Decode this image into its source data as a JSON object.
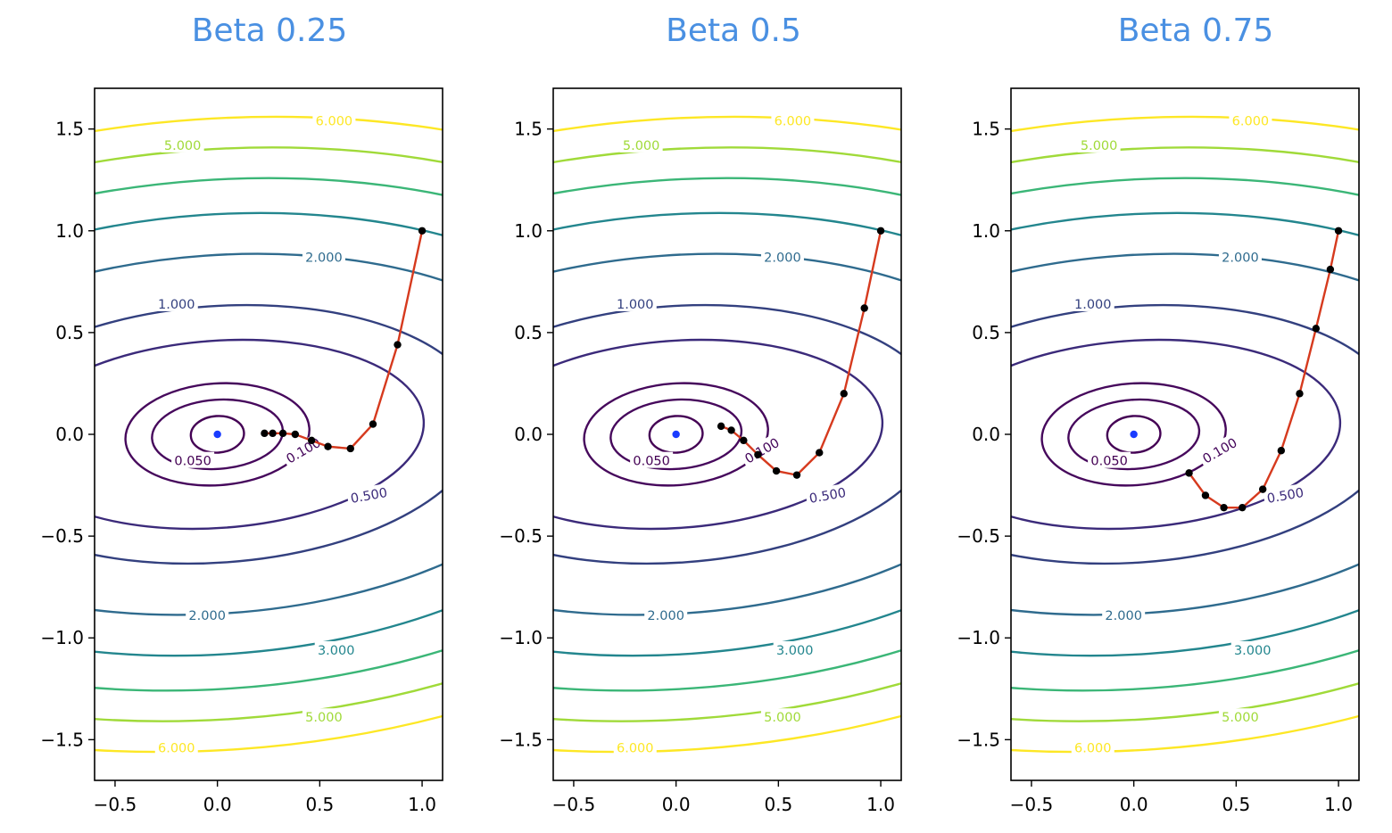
{
  "chart_data": [
    {
      "type": "line",
      "title": "Beta 0.25",
      "xlim": [
        -0.6,
        1.1
      ],
      "ylim": [
        -1.7,
        1.7
      ],
      "xticks": [
        -0.5,
        0.0,
        0.5,
        1.0
      ],
      "yticks": [
        -1.5,
        -1.0,
        -0.5,
        0.0,
        0.5,
        1.0,
        1.5
      ],
      "xtick_labels": [
        "−0.5",
        "0.0",
        "0.5",
        "1.0"
      ],
      "ytick_labels": [
        "−1.5",
        "−1.0",
        "−0.5",
        "0.0",
        "0.5",
        "1.0",
        "1.5"
      ],
      "contour_levels": [
        0.05,
        0.1,
        0.5,
        1.0,
        2.0,
        3.0,
        4.0,
        5.0,
        6.0
      ],
      "contour_labels": [
        "0.050",
        "0.100",
        "0.500",
        "1.000",
        "2.000",
        "3.000",
        "5.000",
        "6.000"
      ],
      "minimum": {
        "x": 0.0,
        "y": 0.0
      },
      "path": {
        "x": [
          1.0,
          0.88,
          0.76,
          0.65,
          0.54,
          0.46,
          0.38,
          0.32,
          0.27,
          0.23
        ],
        "y": [
          1.0,
          0.44,
          0.05,
          -0.07,
          -0.06,
          -0.03,
          0.0,
          0.005,
          0.005,
          0.005
        ]
      }
    },
    {
      "type": "line",
      "title": "Beta 0.5",
      "xlim": [
        -0.6,
        1.1
      ],
      "ylim": [
        -1.7,
        1.7
      ],
      "xticks": [
        -0.5,
        0.0,
        0.5,
        1.0
      ],
      "yticks": [
        -1.5,
        -1.0,
        -0.5,
        0.0,
        0.5,
        1.0,
        1.5
      ],
      "xtick_labels": [
        "−0.5",
        "0.0",
        "0.5",
        "1.0"
      ],
      "ytick_labels": [
        "−1.5",
        "−1.0",
        "−0.5",
        "0.0",
        "0.5",
        "1.0",
        "1.5"
      ],
      "contour_levels": [
        0.05,
        0.1,
        0.5,
        1.0,
        2.0,
        3.0,
        4.0,
        5.0,
        6.0
      ],
      "contour_labels": [
        "0.050",
        "0.100",
        "0.500",
        "1.000",
        "2.000",
        "3.000",
        "5.000",
        "6.000"
      ],
      "minimum": {
        "x": 0.0,
        "y": 0.0
      },
      "path": {
        "x": [
          1.0,
          0.92,
          0.82,
          0.7,
          0.59,
          0.49,
          0.4,
          0.33,
          0.27,
          0.22
        ],
        "y": [
          1.0,
          0.62,
          0.2,
          -0.09,
          -0.2,
          -0.18,
          -0.1,
          -0.03,
          0.02,
          0.04
        ]
      }
    },
    {
      "type": "line",
      "title": "Beta 0.75",
      "xlim": [
        -0.6,
        1.1
      ],
      "ylim": [
        -1.7,
        1.7
      ],
      "xticks": [
        -0.5,
        0.0,
        0.5,
        1.0
      ],
      "yticks": [
        -1.5,
        -1.0,
        -0.5,
        0.0,
        0.5,
        1.0,
        1.5
      ],
      "xtick_labels": [
        "−0.5",
        "0.0",
        "0.5",
        "1.0"
      ],
      "ytick_labels": [
        "−1.5",
        "−1.0",
        "−0.5",
        "0.0",
        "0.5",
        "1.0",
        "1.5"
      ],
      "contour_levels": [
        0.05,
        0.1,
        0.5,
        1.0,
        2.0,
        3.0,
        4.0,
        5.0,
        6.0
      ],
      "contour_labels": [
        "0.050",
        "0.100",
        "0.500",
        "1.000",
        "2.000",
        "3.000",
        "5.000",
        "6.000"
      ],
      "minimum": {
        "x": 0.0,
        "y": 0.0
      },
      "path": {
        "x": [
          1.0,
          0.96,
          0.89,
          0.81,
          0.72,
          0.63,
          0.53,
          0.44,
          0.35,
          0.27
        ],
        "y": [
          1.0,
          0.81,
          0.52,
          0.2,
          -0.08,
          -0.27,
          -0.36,
          -0.36,
          -0.3,
          -0.19
        ]
      }
    }
  ],
  "colors": {
    "title": "#4a90e2",
    "path_line": "#d63a1e",
    "path_points": "#000000",
    "minimum_point": "#1a3cff",
    "levels": {
      "0.05": "#440154",
      "0.1": "#46085c",
      "0.5": "#3b2a7a",
      "1.0": "#33407f",
      "2.0": "#2f6b8e",
      "3.0": "#23868e",
      "4.0": "#3bb677",
      "5.0": "#a0da39",
      "6.0": "#fde725"
    }
  }
}
